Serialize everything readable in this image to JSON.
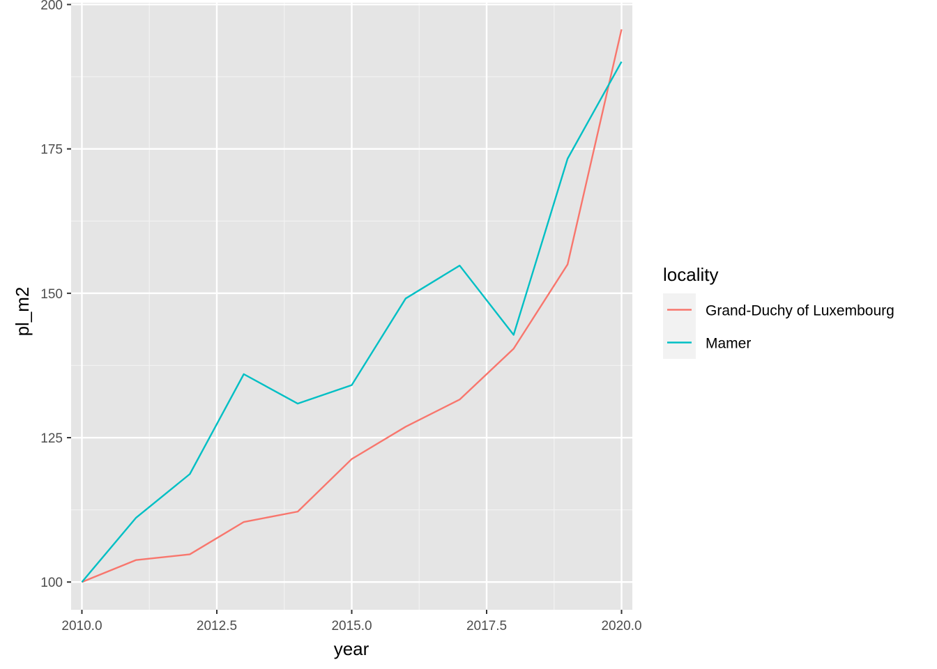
{
  "chart_data": {
    "type": "line",
    "xlabel": "year",
    "ylabel": "pl_m2",
    "xlim": [
      2009.8,
      2020.2
    ],
    "ylim": [
      95.2,
      200.3
    ],
    "x_ticks": [
      2010,
      2012.5,
      2015,
      2017.5,
      2020
    ],
    "x_tick_labels": [
      "2010.0",
      "2012.5",
      "2015.0",
      "2017.5",
      "2020.0"
    ],
    "y_ticks": [
      100,
      125,
      150,
      175,
      200
    ],
    "y_tick_labels": [
      "100",
      "125",
      "150",
      "175",
      "200"
    ],
    "grid": true,
    "panel_background": "#e5e5e5",
    "legend": {
      "title": "locality",
      "placement": "right"
    },
    "series": [
      {
        "name": "Grand-Duchy of Luxembourg",
        "color": "#f8766d",
        "x": [
          2010,
          2011,
          2012,
          2013,
          2014,
          2015,
          2016,
          2017,
          2018,
          2019,
          2020
        ],
        "y": [
          100.0,
          103.8,
          104.8,
          110.4,
          112.2,
          121.3,
          126.9,
          131.6,
          140.4,
          155.0,
          195.7
        ]
      },
      {
        "name": "Mamer",
        "color": "#00bfc4",
        "x": [
          2010,
          2011,
          2012,
          2013,
          2014,
          2015,
          2016,
          2017,
          2018,
          2019,
          2020
        ],
        "y": [
          100.0,
          111.1,
          118.7,
          136.0,
          130.9,
          134.1,
          149.1,
          154.8,
          142.8,
          173.3,
          190.1
        ]
      }
    ]
  }
}
